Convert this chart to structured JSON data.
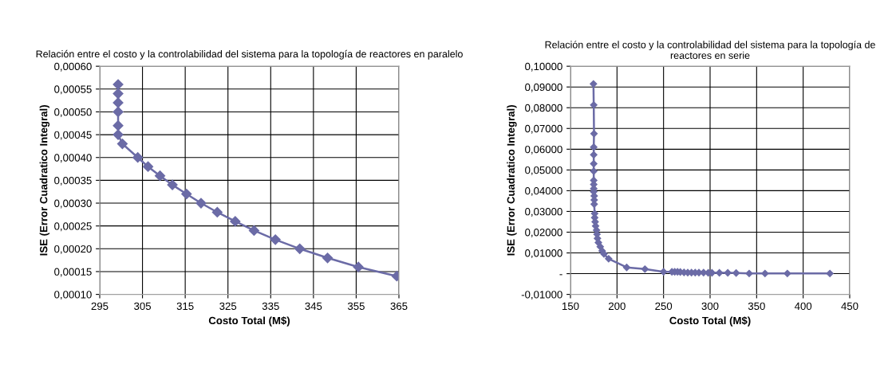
{
  "chart_data": [
    {
      "type": "line",
      "title": "Relación entre el costo y la controlabilidad del sistema para la topología de reactores en paralelo",
      "xlabel": "Costo Total (M$)",
      "ylabel": "ISE (Error Cuadratico Integral)",
      "marker": "diamond",
      "grid": true,
      "line_style": "solid",
      "series": [
        {
          "color": "#6b6ba6",
          "x": [
            299.3,
            299.3,
            299.3,
            299.3,
            299.3,
            299.3,
            300.3,
            303.9,
            306.3,
            309.1,
            312.0,
            315.3,
            318.7,
            322.5,
            326.7,
            331.1,
            336.1,
            341.8,
            348.3,
            355.5,
            364.5
          ],
          "values": [
            0.00056,
            0.00054,
            0.00052,
            0.0005,
            0.00047,
            0.00045,
            0.00043,
            0.0004,
            0.00038,
            0.00036,
            0.00034,
            0.00032,
            0.0003,
            0.00028,
            0.00026,
            0.00024,
            0.00022,
            0.0002,
            0.00018,
            0.00016,
            0.00014
          ]
        }
      ],
      "xlim": [
        295,
        365
      ],
      "xticks": [
        295,
        305,
        315,
        325,
        335,
        345,
        355,
        365
      ],
      "ylim": [
        0.0001,
        0.0006
      ],
      "yticks": [
        {
          "value": 0.0001,
          "label": "0,00010"
        },
        {
          "value": 0.00015,
          "label": "0,00015"
        },
        {
          "value": 0.0002,
          "label": "0,00020"
        },
        {
          "value": 0.00025,
          "label": "0,00025"
        },
        {
          "value": 0.0003,
          "label": "0,00030"
        },
        {
          "value": 0.00035,
          "label": "0,00035"
        },
        {
          "value": 0.0004,
          "label": "0,00040"
        },
        {
          "value": 0.00045,
          "label": "0,00045"
        },
        {
          "value": 0.0005,
          "label": "0,00050"
        },
        {
          "value": 0.00055,
          "label": "0,00055"
        },
        {
          "value": 0.0006,
          "label": "0,00060"
        }
      ]
    },
    {
      "type": "line",
      "title": "Relación entre el costo y la controlabilidad del sistema para la topología de reactores en serie",
      "xlabel": "Costo Total (M$)",
      "ylabel": "ISE (Error Cuadratico Integral)",
      "marker": "diamond",
      "grid": true,
      "line_style": "solid",
      "series": [
        {
          "color": "#6b6ba6",
          "x": [
            174.7,
            175,
            175.3,
            175,
            175,
            175,
            175,
            175,
            175,
            175,
            175,
            175.5,
            175.5,
            175.5,
            176,
            176,
            176.5,
            177,
            178,
            178.5,
            179,
            180,
            182,
            184,
            186,
            191,
            210.4,
            230,
            250,
            259,
            262,
            265,
            268,
            272,
            276,
            280,
            284,
            288,
            293,
            298,
            302,
            310,
            319,
            328,
            342,
            359,
            383,
            428.7
          ],
          "values": [
            0.0915,
            0.0813,
            0.0675,
            0.061,
            0.0573,
            0.053,
            0.0494,
            0.045,
            0.043,
            0.041,
            0.0395,
            0.0375,
            0.0355,
            0.0335,
            0.029,
            0.027,
            0.025,
            0.023,
            0.021,
            0.019,
            0.017,
            0.015,
            0.013,
            0.011,
            0.0095,
            0.0072,
            0.003,
            0.0022,
            0.0009,
            0.0009,
            0.0009,
            0.0009,
            0.0008,
            0.0006,
            0.0005,
            0.0005,
            0.0005,
            0.0005,
            0.0005,
            0.0004,
            0.0004,
            0.0004,
            0.0004,
            0.0003,
            0.0001,
            0.0001,
            0.0001,
            0.0001
          ]
        }
      ],
      "xlim": [
        150,
        450
      ],
      "xticks": [
        150,
        200,
        250,
        300,
        350,
        400,
        450
      ],
      "ylim": [
        -0.01,
        0.1
      ],
      "yticks": [
        {
          "value": -0.01,
          "label": "-0,01000"
        },
        {
          "value": 0,
          "label": "-"
        },
        {
          "value": 0.01,
          "label": "0,01000"
        },
        {
          "value": 0.02,
          "label": "0,02000"
        },
        {
          "value": 0.03,
          "label": "0,03000"
        },
        {
          "value": 0.04,
          "label": "0,04000"
        },
        {
          "value": 0.05,
          "label": "0,05000"
        },
        {
          "value": 0.06,
          "label": "0,06000"
        },
        {
          "value": 0.07,
          "label": "0,07000"
        },
        {
          "value": 0.08,
          "label": "0,08000"
        },
        {
          "value": 0.09,
          "label": "0,09000"
        },
        {
          "value": 0.1,
          "label": "0,10000"
        }
      ]
    }
  ]
}
